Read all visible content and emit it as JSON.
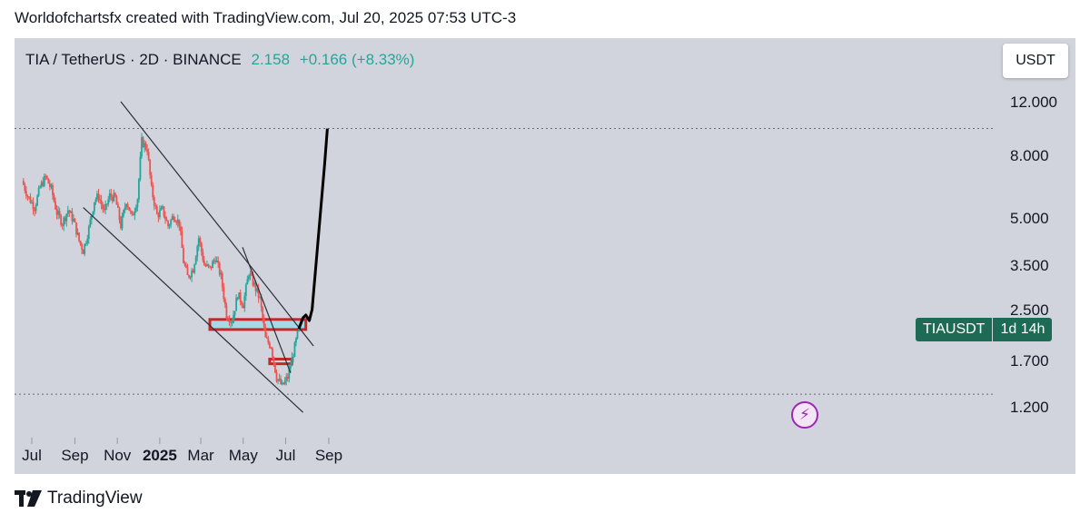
{
  "caption": "Worldofchartsfx created with TradingView.com, Jul 20, 2025 07:53 UTC-3",
  "header": {
    "symbol": "TIA / TetherUS · 2D · BINANCE",
    "price": "2.158",
    "change": "+0.166 (+8.33%)"
  },
  "currency_button": "USDT",
  "price_tag": {
    "symbol": "TIAUSDT",
    "countdown": "1d 14h"
  },
  "brand": "TradingView",
  "colors": {
    "up": "#26a69a",
    "down": "#ef5350",
    "zone_fill": "#a8d8e6",
    "zone_border": "#c62828",
    "background": "#d1d4dc"
  },
  "chart_data": {
    "type": "candlestick",
    "y_scale": "log",
    "y_ticks": [
      "12.000",
      "8.000",
      "5.000",
      "3.500",
      "2.500",
      "1.700",
      "1.200"
    ],
    "y_tick_values": [
      12,
      8,
      5,
      3.5,
      2.5,
      1.7,
      1.2
    ],
    "x_ticks": [
      {
        "label": "Jul",
        "date": "2024-07-01",
        "bold": false
      },
      {
        "label": "Sep",
        "date": "2024-09-01",
        "bold": false
      },
      {
        "label": "Nov",
        "date": "2024-11-01",
        "bold": false
      },
      {
        "label": "2025",
        "date": "2025-01-01",
        "bold": true
      },
      {
        "label": "Mar",
        "date": "2025-03-01",
        "bold": false
      },
      {
        "label": "May",
        "date": "2025-05-01",
        "bold": false
      },
      {
        "label": "Jul",
        "date": "2025-07-01",
        "bold": false
      },
      {
        "label": "Sep",
        "date": "2025-09-01",
        "bold": false
      }
    ],
    "close_path": [
      [
        "2024-06-17",
        6.6
      ],
      [
        "2024-06-25",
        5.9
      ],
      [
        "2024-07-05",
        5.4
      ],
      [
        "2024-07-13",
        6.3
      ],
      [
        "2024-07-21",
        6.8
      ],
      [
        "2024-07-29",
        6.2
      ],
      [
        "2024-08-06",
        5.2
      ],
      [
        "2024-08-14",
        4.8
      ],
      [
        "2024-08-22",
        5.3
      ],
      [
        "2024-08-30",
        4.9
      ],
      [
        "2024-09-07",
        4.2
      ],
      [
        "2024-09-13",
        3.9
      ],
      [
        "2024-09-21",
        4.6
      ],
      [
        "2024-09-29",
        5.7
      ],
      [
        "2024-10-05",
        5.9
      ],
      [
        "2024-10-13",
        5.2
      ],
      [
        "2024-10-21",
        5.9
      ],
      [
        "2024-10-29",
        5.8
      ],
      [
        "2024-11-06",
        4.7
      ],
      [
        "2024-11-14",
        5.7
      ],
      [
        "2024-11-22",
        5.0
      ],
      [
        "2024-11-30",
        5.8
      ],
      [
        "2024-12-06",
        8.9
      ],
      [
        "2024-12-14",
        8.4
      ],
      [
        "2024-12-20",
        6.2
      ],
      [
        "2024-12-28",
        5.1
      ],
      [
        "2025-01-05",
        5.3
      ],
      [
        "2025-01-13",
        4.7
      ],
      [
        "2025-01-21",
        5.1
      ],
      [
        "2025-01-29",
        4.8
      ],
      [
        "2025-02-04",
        3.6
      ],
      [
        "2025-02-10",
        3.2
      ],
      [
        "2025-02-18",
        3.4
      ],
      [
        "2025-02-26",
        4.3
      ],
      [
        "2025-03-06",
        3.5
      ],
      [
        "2025-03-14",
        3.4
      ],
      [
        "2025-03-22",
        3.7
      ],
      [
        "2025-03-30",
        3.2
      ],
      [
        "2025-04-07",
        2.4
      ],
      [
        "2025-04-15",
        2.3
      ],
      [
        "2025-04-23",
        2.8
      ],
      [
        "2025-05-01",
        2.6
      ],
      [
        "2025-05-09",
        3.3
      ],
      [
        "2025-05-17",
        3.0
      ],
      [
        "2025-05-25",
        2.7
      ],
      [
        "2025-06-02",
        2.0
      ],
      [
        "2025-06-10",
        1.9
      ],
      [
        "2025-06-18",
        1.5
      ],
      [
        "2025-06-26",
        1.4
      ],
      [
        "2025-07-04",
        1.5
      ],
      [
        "2025-07-12",
        1.8
      ],
      [
        "2025-07-20",
        2.16
      ]
    ],
    "projection": [
      [
        "2025-07-20",
        2.16
      ],
      [
        "2025-07-26",
        2.35
      ],
      [
        "2025-07-30",
        2.4
      ],
      [
        "2025-08-04",
        2.3
      ],
      [
        "2025-08-08",
        2.5
      ],
      [
        "2025-08-14",
        3.6
      ],
      [
        "2025-08-20",
        5.2
      ],
      [
        "2025-08-26",
        7.5
      ],
      [
        "2025-08-30",
        9.8
      ]
    ],
    "channel_lines": [
      [
        [
          "2024-11-06",
          12.0
        ],
        [
          "2025-08-10",
          1.9
        ]
      ],
      [
        [
          "2024-09-13",
          5.4
        ],
        [
          "2025-07-26",
          1.15
        ]
      ],
      [
        [
          "2025-04-30",
          4.0
        ],
        [
          "2025-07-08",
          1.55
        ]
      ]
    ],
    "zones": [
      {
        "from": "2025-03-14",
        "to": "2025-07-30",
        "low": 2.15,
        "high": 2.32,
        "fill": true
      },
      {
        "from": "2025-06-08",
        "to": "2025-07-10",
        "low": 1.66,
        "high": 1.72,
        "fill": false
      }
    ],
    "dotted_levels": [
      9.8,
      1.32
    ]
  }
}
